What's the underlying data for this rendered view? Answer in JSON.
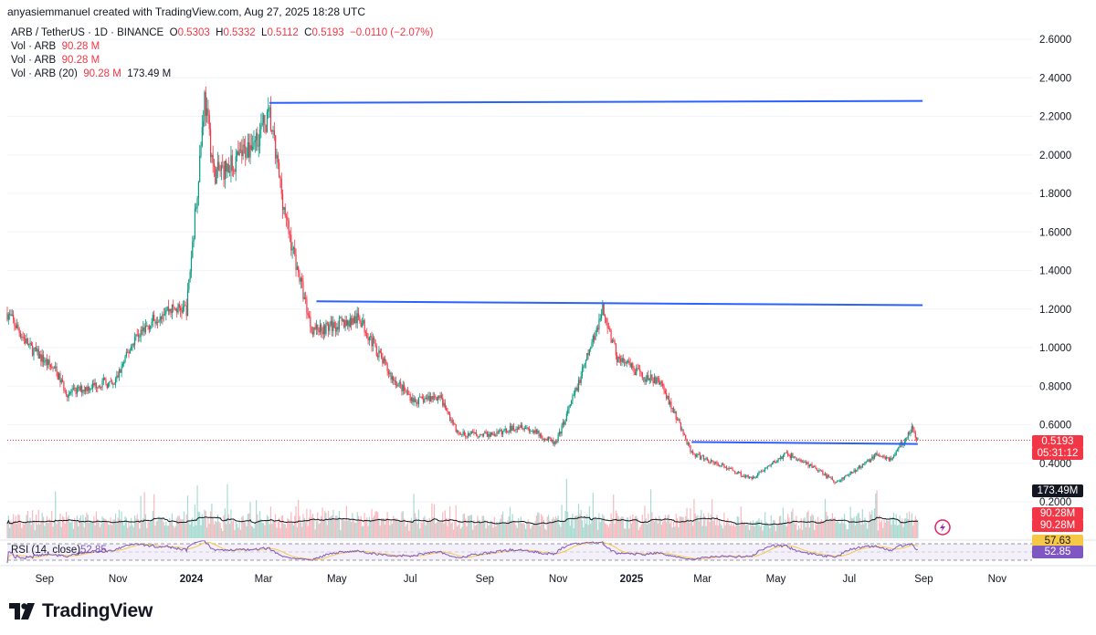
{
  "attribution": "anyasiemmanuel created with TradingView.com, Aug 27, 2025 18:28 UTC",
  "legend": {
    "symbol": "ARB / TetherUS · 1D · BINANCE",
    "o_label": "O",
    "o_value": "0.5303",
    "h_label": "H",
    "h_value": "0.5332",
    "l_label": "L",
    "l_value": "0.5112",
    "c_label": "C",
    "c_value": "0.5193",
    "change": "−0.0110 (−2.07%)",
    "vol1_label": "Vol · ARB",
    "vol1_value": "90.28 M",
    "vol2_label": "Vol · ARB",
    "vol2_value": "90.28 M",
    "vol3_label": "Vol · ARB (20)",
    "vol3_value": "90.28 M",
    "vol3_ma": "173.49 M"
  },
  "rsi": {
    "label": "RSI (14, close)",
    "value": "52.85",
    "value2": "57.63"
  },
  "price_tags": {
    "last_price": "0.5193",
    "countdown": "05:31:12",
    "vol_ma": "173.49M",
    "vol_a": "90.28M",
    "vol_b": "90.28M",
    "rsi": "52.85"
  },
  "brand": "TradingView",
  "colors": {
    "up": "#089981",
    "down": "#f23645",
    "hline": "#2962ff",
    "rsi": "#7e57c2",
    "rsi_ma": "#f7c748",
    "vol_ma": "#131722"
  },
  "chart_data": {
    "type": "candlestick",
    "title": "ARB / TetherUS · 1D · BINANCE",
    "ylim": [
      0.0,
      2.7
    ],
    "y_ticks": [
      "2.6000",
      "2.4000",
      "2.2000",
      "2.0000",
      "1.8000",
      "1.6000",
      "1.4000",
      "1.2000",
      "1.0000",
      "0.8000",
      "0.6000",
      "0.4000",
      "0.2000"
    ],
    "x_ticks": [
      "Sep",
      "Nov",
      "2024",
      "Mar",
      "May",
      "Jul",
      "Sep",
      "Nov",
      "2025",
      "Mar",
      "May",
      "Jul",
      "Sep",
      "Nov"
    ],
    "x_range": [
      "2023-08-01",
      "2025-11-30"
    ],
    "last_close": 0.5193,
    "horizontal_lines": [
      {
        "from": "2024-03-06",
        "to": "2025-08-31",
        "y_start": 2.27,
        "y_end": 2.28
      },
      {
        "from": "2024-04-14",
        "to": "2025-08-31",
        "y_start": 1.24,
        "y_end": 1.22
      },
      {
        "from": "2025-02-20",
        "to": "2025-08-27",
        "y_start": 0.51,
        "y_end": 0.5
      }
    ],
    "price_path": [
      [
        "2023-08-01",
        1.18
      ],
      [
        "2023-08-20",
        1.0
      ],
      [
        "2023-09-10",
        0.88
      ],
      [
        "2023-09-20",
        0.76
      ],
      [
        "2023-10-20",
        0.82
      ],
      [
        "2023-10-28",
        0.8
      ],
      [
        "2023-11-15",
        1.05
      ],
      [
        "2023-12-10",
        1.2
      ],
      [
        "2023-12-28",
        1.2
      ],
      [
        "2024-01-05",
        1.75
      ],
      [
        "2024-01-12",
        2.3
      ],
      [
        "2024-01-20",
        1.9
      ],
      [
        "2024-02-05",
        1.95
      ],
      [
        "2024-02-25",
        2.1
      ],
      [
        "2024-03-06",
        2.2
      ],
      [
        "2024-03-20",
        1.65
      ],
      [
        "2024-04-10",
        1.1
      ],
      [
        "2024-04-20",
        1.1
      ],
      [
        "2024-05-20",
        1.15
      ],
      [
        "2024-06-15",
        0.85
      ],
      [
        "2024-07-05",
        0.72
      ],
      [
        "2024-07-25",
        0.75
      ],
      [
        "2024-08-10",
        0.55
      ],
      [
        "2024-09-10",
        0.55
      ],
      [
        "2024-10-01",
        0.6
      ],
      [
        "2024-10-30",
        0.5
      ],
      [
        "2024-11-20",
        0.85
      ],
      [
        "2024-12-08",
        1.2
      ],
      [
        "2024-12-20",
        0.95
      ],
      [
        "2025-01-10",
        0.85
      ],
      [
        "2025-01-25",
        0.82
      ],
      [
        "2025-02-10",
        0.6
      ],
      [
        "2025-02-20",
        0.45
      ],
      [
        "2025-03-20",
        0.38
      ],
      [
        "2025-04-10",
        0.32
      ],
      [
        "2025-05-10",
        0.45
      ],
      [
        "2025-06-01",
        0.38
      ],
      [
        "2025-06-20",
        0.3
      ],
      [
        "2025-07-10",
        0.38
      ],
      [
        "2025-07-25",
        0.45
      ],
      [
        "2025-08-05",
        0.42
      ],
      [
        "2025-08-22",
        0.58
      ],
      [
        "2025-08-27",
        0.52
      ]
    ],
    "volume_ma_label": "Vol · ARB (20)",
    "rsi_range": [
      30,
      70
    ]
  }
}
